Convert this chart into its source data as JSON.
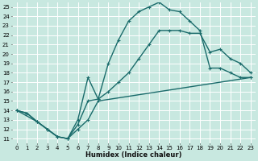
{
  "xlabel": "Humidex (Indice chaleur)",
  "bg_color": "#c8e8e0",
  "grid_color": "#ffffff",
  "line_color": "#1a6b6b",
  "xlim": [
    -0.5,
    23.5
  ],
  "ylim": [
    10.5,
    25.5
  ],
  "xticks": [
    0,
    1,
    2,
    3,
    4,
    5,
    6,
    7,
    8,
    9,
    10,
    11,
    12,
    13,
    14,
    15,
    16,
    17,
    18,
    19,
    20,
    21,
    22,
    23
  ],
  "yticks": [
    11,
    12,
    13,
    14,
    15,
    16,
    17,
    18,
    19,
    20,
    21,
    22,
    23,
    24,
    25
  ],
  "line1_x": [
    0,
    1,
    2,
    3,
    4,
    5,
    6,
    7,
    8,
    23
  ],
  "line1_y": [
    14.0,
    13.7,
    12.8,
    12.0,
    11.2,
    11.0,
    12.0,
    13.0,
    15.0,
    17.5
  ],
  "line2_x": [
    0,
    1,
    2,
    3,
    4,
    5,
    6,
    7,
    8,
    9,
    10,
    11,
    12,
    13,
    14,
    15,
    16,
    17,
    18,
    19,
    20,
    21,
    22,
    23
  ],
  "line2_y": [
    14.0,
    13.7,
    12.8,
    12.0,
    11.2,
    11.0,
    12.5,
    15.0,
    15.2,
    19.0,
    21.5,
    23.5,
    24.5,
    25.0,
    25.5,
    24.7,
    24.5,
    23.5,
    22.5,
    18.5,
    18.5,
    18.0,
    17.5,
    17.5
  ],
  "line3_x": [
    0,
    2,
    3,
    4,
    5,
    6,
    7,
    8,
    9,
    10,
    11,
    12,
    13,
    14,
    15,
    16,
    17,
    18,
    19,
    20,
    21,
    22,
    23
  ],
  "line3_y": [
    14.0,
    12.8,
    12.0,
    11.2,
    11.0,
    13.0,
    17.5,
    15.2,
    16.0,
    17.0,
    18.0,
    19.5,
    21.0,
    22.5,
    22.5,
    22.5,
    22.2,
    22.2,
    20.2,
    20.5,
    19.5,
    19.0,
    18.0
  ],
  "linewidth": 1.0,
  "markersize": 2.5
}
